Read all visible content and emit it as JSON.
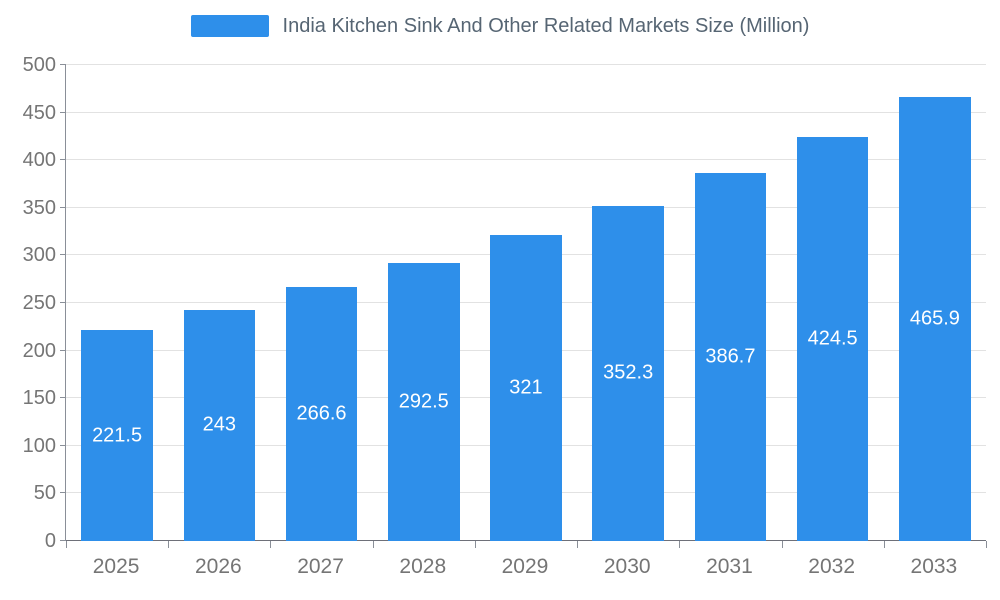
{
  "chart_data": {
    "type": "bar",
    "title": "India Kitchen Sink And Other Related Markets Size (Million)",
    "categories": [
      "2025",
      "2026",
      "2027",
      "2028",
      "2029",
      "2030",
      "2031",
      "2032",
      "2033"
    ],
    "values": [
      221.5,
      243,
      266.6,
      292.5,
      321,
      352.3,
      386.7,
      424.5,
      465.9
    ],
    "xlabel": "",
    "ylabel": "",
    "ylim": [
      0,
      500
    ],
    "ytick_step": 50,
    "grid": true,
    "legend_position": "top",
    "colors": {
      "bar": "#2e8fea",
      "value_label": "#ffffff",
      "axis_text": "#757575",
      "gridline": "#e2e2e2",
      "axis_line": "#6e7079",
      "title_text": "#566573"
    }
  }
}
